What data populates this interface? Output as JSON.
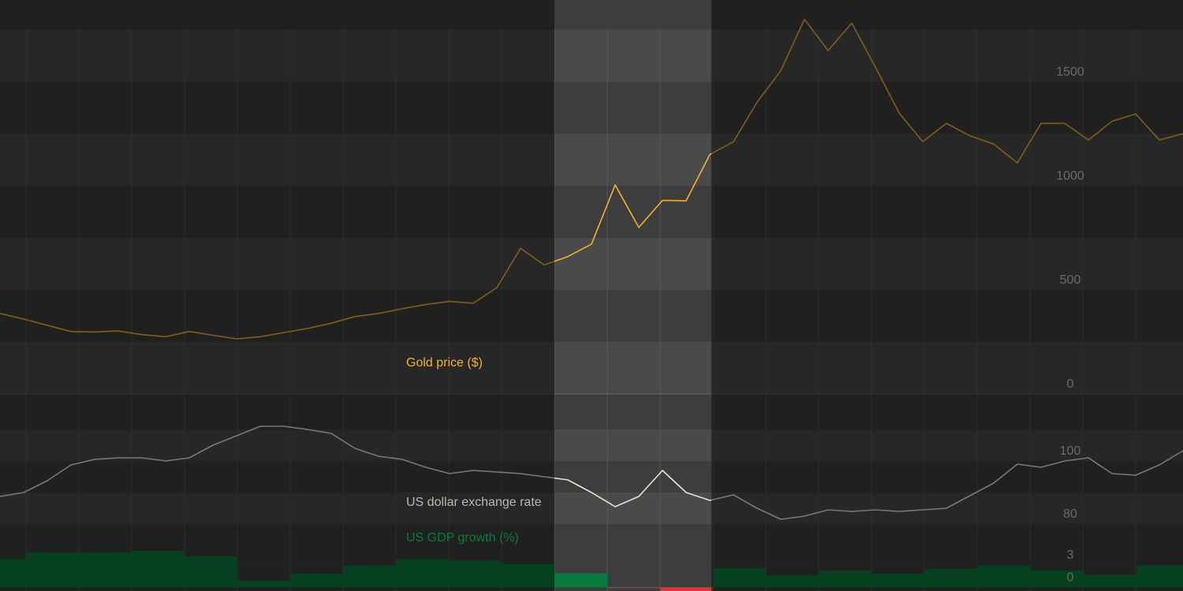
{
  "chart_data": [
    {
      "type": "line",
      "title": "Gold price ($)",
      "color": "#f2b134",
      "values": [
        387,
        360,
        330,
        300,
        298,
        303,
        285,
        275,
        300,
        282,
        265,
        275,
        295,
        315,
        340,
        372,
        387,
        410,
        430,
        445,
        436,
        511,
        700,
        620,
        660,
        720,
        1004,
        800,
        930,
        928,
        1150,
        1212,
        1402,
        1553,
        1800,
        1650,
        1781,
        1570,
        1350,
        1212,
        1300,
        1240,
        1200,
        1110,
        1300,
        1300,
        1220,
        1310,
        1345,
        1220,
        1250
      ],
      "ylim": [
        0,
        1900
      ],
      "yticks": [
        0,
        500,
        1000,
        1500
      ],
      "grid": true
    },
    {
      "type": "line",
      "title": "US dollar exchange rate",
      "color": "#efe3cf",
      "values": [
        88.75,
        90,
        93.75,
        98.75,
        100.5,
        101,
        101,
        100,
        101,
        105,
        108,
        111,
        111,
        110,
        108.75,
        104,
        101.5,
        100.5,
        98,
        96,
        97,
        96.5,
        96,
        95,
        94,
        90,
        85.5,
        88.75,
        97,
        90,
        87.5,
        89.25,
        85,
        81.5,
        82.5,
        84.5,
        84,
        84.5,
        84,
        84.5,
        85,
        89,
        93,
        99,
        98,
        100,
        101,
        96,
        95.5,
        98.75,
        103.25
      ],
      "ylim": [
        80,
        120
      ],
      "yticks": [
        80,
        100
      ],
      "grid": true
    },
    {
      "type": "bar",
      "title": "US GDP growth  (%)",
      "color": "#0a7a3c",
      "negative_color": "#d9363a",
      "values": [
        3.8,
        4.7,
        4.7,
        4.9,
        4.2,
        0.9,
        1.8,
        2.9,
        3.8,
        3.6,
        3.1,
        1.9,
        -0.1,
        -0.5,
        2.6,
        1.6,
        2.2,
        1.8,
        2.5,
        2.9,
        2.3,
        1.7,
        3.0
      ],
      "ylim": [
        -0.5,
        8.5
      ],
      "yticks": [
        0,
        3
      ],
      "grid": true
    }
  ]
}
